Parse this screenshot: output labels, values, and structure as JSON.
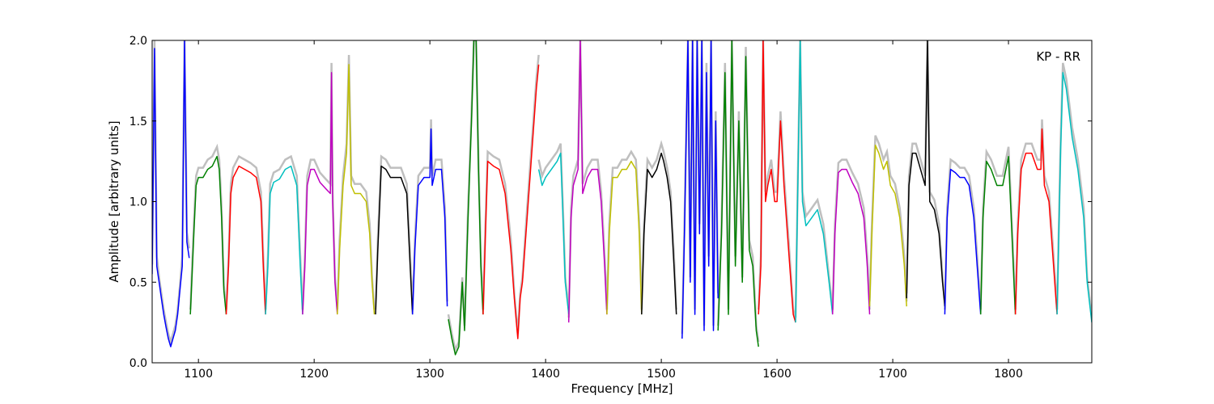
{
  "chart_data": {
    "type": "line",
    "title": "",
    "annotation": "KP - RR",
    "xlabel": "Frequency [MHz]",
    "ylabel": "Amplitude [arbitrary units]",
    "xlim": [
      1060,
      1872
    ],
    "ylim": [
      0.0,
      2.0
    ],
    "xticks": [
      1100,
      1200,
      1300,
      1400,
      1500,
      1600,
      1700,
      1800
    ],
    "yticks": [
      0.0,
      0.5,
      1.0,
      1.5,
      2.0
    ],
    "xtick_labels": [
      "1100",
      "1200",
      "1300",
      "1400",
      "1500",
      "1600",
      "1700",
      "1800"
    ],
    "ytick_labels": [
      "0.0",
      "0.5",
      "1.0",
      "1.5",
      "2.0"
    ],
    "grid": false,
    "background_series": {
      "color": "#bfbfbf",
      "description_color": "gray"
    },
    "series": [
      {
        "color": "#0000ff",
        "x": [
          1060,
          1062,
          1064,
          1066,
          1068,
          1070,
          1072,
          1074,
          1076,
          1078,
          1080,
          1082,
          1084,
          1086,
          1088,
          1090,
          1092
        ],
        "y": [
          0.55,
          1.95,
          0.6,
          0.5,
          0.4,
          0.3,
          0.22,
          0.15,
          0.1,
          0.15,
          0.2,
          0.3,
          0.45,
          0.6,
          2.0,
          0.75,
          0.65
        ]
      },
      {
        "color": "#008000",
        "x": [
          1093,
          1096,
          1098,
          1100,
          1104,
          1108,
          1112,
          1116,
          1118,
          1120,
          1122,
          1124
        ],
        "y": [
          0.3,
          0.8,
          1.1,
          1.15,
          1.15,
          1.2,
          1.22,
          1.28,
          1.2,
          0.9,
          0.45,
          0.3
        ]
      },
      {
        "color": "#ff0000",
        "x": [
          1124,
          1126,
          1128,
          1130,
          1135,
          1140,
          1145,
          1150,
          1154,
          1156,
          1158
        ],
        "y": [
          0.3,
          0.6,
          1.05,
          1.15,
          1.22,
          1.2,
          1.18,
          1.15,
          1.0,
          0.6,
          0.3
        ]
      },
      {
        "color": "#00bfbf",
        "x": [
          1158,
          1160,
          1162,
          1165,
          1170,
          1175,
          1180,
          1185,
          1188,
          1190
        ],
        "y": [
          0.3,
          0.6,
          1.05,
          1.12,
          1.14,
          1.2,
          1.22,
          1.1,
          0.6,
          0.3
        ]
      },
      {
        "color": "#bf00bf",
        "x": [
          1190,
          1192,
          1194,
          1197,
          1200,
          1205,
          1210,
          1214,
          1215,
          1216,
          1218,
          1220
        ],
        "y": [
          0.3,
          0.6,
          1.1,
          1.2,
          1.2,
          1.12,
          1.08,
          1.05,
          1.8,
          1.0,
          0.5,
          0.3
        ]
      },
      {
        "color": "#bfbf00",
        "x": [
          1220,
          1222,
          1225,
          1228,
          1230,
          1232,
          1235,
          1240,
          1245,
          1248,
          1250,
          1252
        ],
        "y": [
          0.3,
          0.7,
          1.1,
          1.3,
          1.85,
          1.1,
          1.05,
          1.05,
          1.0,
          0.8,
          0.5,
          0.3
        ]
      },
      {
        "color": "#000000",
        "x": [
          1253,
          1255,
          1258,
          1262,
          1266,
          1270,
          1275,
          1280,
          1283,
          1285
        ],
        "y": [
          0.3,
          0.7,
          1.22,
          1.2,
          1.15,
          1.15,
          1.15,
          1.05,
          0.6,
          0.3
        ]
      },
      {
        "color": "#0000ff",
        "x": [
          1285,
          1287,
          1290,
          1295,
          1300,
          1301,
          1302,
          1305,
          1310,
          1313,
          1315
        ],
        "y": [
          0.3,
          0.7,
          1.1,
          1.15,
          1.15,
          1.45,
          1.1,
          1.2,
          1.2,
          0.9,
          0.35
        ]
      },
      {
        "color": "#008000",
        "x": [
          1316,
          1319,
          1322,
          1325,
          1328,
          1330,
          1333,
          1336,
          1338,
          1340,
          1342,
          1344,
          1346
        ],
        "y": [
          0.27,
          0.15,
          0.05,
          0.1,
          0.5,
          0.2,
          0.9,
          1.5,
          2.0,
          2.0,
          1.2,
          0.6,
          0.3
        ]
      },
      {
        "color": "#ff0000",
        "x": [
          1346,
          1348,
          1350,
          1355,
          1360,
          1365,
          1370,
          1373,
          1376,
          1378,
          1380,
          1384,
          1388,
          1392,
          1394
        ],
        "y": [
          0.3,
          0.8,
          1.25,
          1.22,
          1.2,
          1.05,
          0.7,
          0.4,
          0.15,
          0.4,
          0.5,
          0.9,
          1.3,
          1.7,
          1.85
        ]
      },
      {
        "color": "#00bfbf",
        "x": [
          1394,
          1397,
          1400,
          1405,
          1410,
          1413,
          1415,
          1417,
          1420
        ],
        "y": [
          1.2,
          1.1,
          1.15,
          1.2,
          1.25,
          1.3,
          0.9,
          0.5,
          0.3
        ]
      },
      {
        "color": "#bf00bf",
        "x": [
          1420,
          1422,
          1424,
          1428,
          1430,
          1432,
          1436,
          1440,
          1445,
          1448,
          1451,
          1453
        ],
        "y": [
          0.25,
          0.9,
          1.1,
          1.2,
          2.0,
          1.05,
          1.15,
          1.2,
          1.2,
          1.0,
          0.6,
          0.3
        ]
      },
      {
        "color": "#bfbf00",
        "x": [
          1453,
          1455,
          1458,
          1462,
          1466,
          1470,
          1474,
          1478,
          1481,
          1483
        ],
        "y": [
          0.3,
          0.8,
          1.15,
          1.15,
          1.2,
          1.2,
          1.25,
          1.2,
          0.8,
          0.3
        ]
      },
      {
        "color": "#000000",
        "x": [
          1483,
          1485,
          1488,
          1492,
          1496,
          1500,
          1502,
          1505,
          1508,
          1511,
          1513
        ],
        "y": [
          0.3,
          0.8,
          1.2,
          1.15,
          1.2,
          1.3,
          1.25,
          1.15,
          1.0,
          0.6,
          0.3
        ]
      },
      {
        "color": "#0000ff",
        "x": [
          1518,
          1520,
          1523,
          1525,
          1527,
          1529,
          1531,
          1533,
          1535,
          1537,
          1539,
          1541,
          1543,
          1545,
          1547,
          1549
        ],
        "y": [
          0.15,
          0.8,
          2.0,
          0.5,
          2.0,
          0.3,
          2.0,
          0.8,
          2.0,
          0.2,
          1.8,
          0.6,
          2.0,
          0.2,
          1.5,
          0.4
        ]
      },
      {
        "color": "#008000",
        "x": [
          1549,
          1552,
          1555,
          1558,
          1561,
          1564,
          1567,
          1570,
          1573,
          1576,
          1579,
          1582,
          1584
        ],
        "y": [
          0.2,
          0.8,
          1.8,
          0.3,
          2.0,
          0.6,
          1.5,
          0.5,
          1.9,
          0.7,
          0.6,
          0.2,
          0.1
        ]
      },
      {
        "color": "#ff0000",
        "x": [
          1584,
          1586,
          1588,
          1590,
          1592,
          1595,
          1598,
          1600,
          1603,
          1606,
          1610,
          1614,
          1616
        ],
        "y": [
          0.3,
          0.6,
          2.0,
          1.0,
          1.1,
          1.2,
          1.0,
          1.0,
          1.5,
          1.1,
          0.7,
          0.3,
          0.25
        ]
      },
      {
        "color": "#00bfbf",
        "x": [
          1616,
          1618,
          1620,
          1622,
          1625,
          1630,
          1635,
          1640,
          1645,
          1648
        ],
        "y": [
          0.25,
          1.1,
          2.0,
          1.0,
          0.85,
          0.9,
          0.95,
          0.8,
          0.5,
          0.3
        ]
      },
      {
        "color": "#bf00bf",
        "x": [
          1648,
          1650,
          1653,
          1656,
          1660,
          1665,
          1670,
          1675,
          1678,
          1680
        ],
        "y": [
          0.3,
          0.8,
          1.18,
          1.2,
          1.2,
          1.12,
          1.05,
          0.9,
          0.6,
          0.3
        ]
      },
      {
        "color": "#bfbf00",
        "x": [
          1680,
          1682,
          1685,
          1688,
          1692,
          1695,
          1698,
          1702,
          1706,
          1710,
          1712
        ],
        "y": [
          0.35,
          0.8,
          1.35,
          1.3,
          1.2,
          1.25,
          1.1,
          1.05,
          0.9,
          0.6,
          0.35
        ]
      },
      {
        "color": "#000000",
        "x": [
          1712,
          1714,
          1717,
          1720,
          1724,
          1728,
          1730,
          1732,
          1736,
          1740,
          1743,
          1745
        ],
        "y": [
          0.4,
          1.1,
          1.3,
          1.3,
          1.2,
          1.1,
          2.0,
          1.0,
          0.95,
          0.8,
          0.5,
          0.35
        ]
      },
      {
        "color": "#0000ff",
        "x": [
          1745,
          1747,
          1750,
          1754,
          1758,
          1762,
          1766,
          1770,
          1773,
          1776
        ],
        "y": [
          0.3,
          0.9,
          1.2,
          1.18,
          1.15,
          1.15,
          1.1,
          0.9,
          0.6,
          0.3
        ]
      },
      {
        "color": "#008000",
        "x": [
          1776,
          1778,
          1781,
          1785,
          1790,
          1795,
          1800,
          1803,
          1806
        ],
        "y": [
          0.3,
          0.9,
          1.25,
          1.2,
          1.1,
          1.1,
          1.28,
          0.8,
          0.3
        ]
      },
      {
        "color": "#ff0000",
        "x": [
          1806,
          1808,
          1811,
          1815,
          1820,
          1825,
          1828,
          1829,
          1831,
          1835,
          1839,
          1842
        ],
        "y": [
          0.3,
          0.8,
          1.2,
          1.3,
          1.3,
          1.2,
          1.2,
          1.45,
          1.1,
          1.0,
          0.6,
          0.3
        ]
      },
      {
        "color": "#00bfbf",
        "x": [
          1842,
          1845,
          1847,
          1850,
          1855,
          1860,
          1865,
          1868,
          1872
        ],
        "y": [
          0.3,
          1.3,
          1.8,
          1.7,
          1.4,
          1.2,
          0.9,
          0.5,
          0.25
        ]
      }
    ]
  }
}
